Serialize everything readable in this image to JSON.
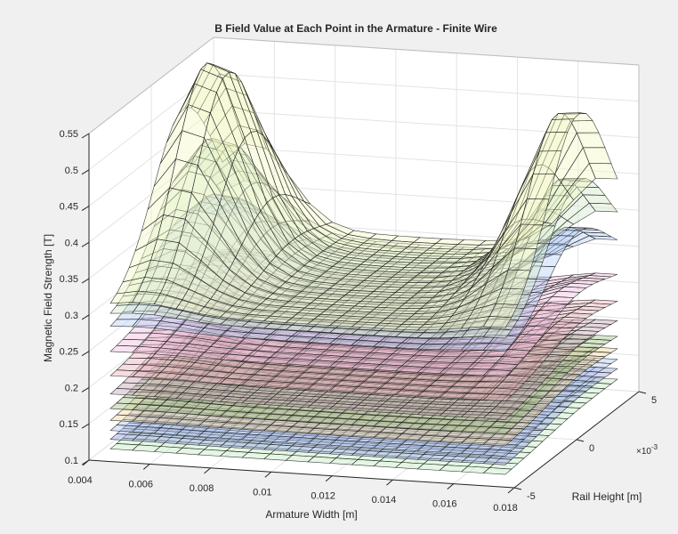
{
  "chart_data": {
    "type": "surface",
    "title": "B Field Value at Each Point in the Armature - Finite Wire",
    "xlabel": "Armature Width [m]",
    "ylabel": "Rail Height [m]",
    "zlabel": "Magnetic Field Strength [T]",
    "xlim": [
      0.004,
      0.018
    ],
    "ylim": [
      -0.005,
      0.005
    ],
    "zlim": [
      0.1,
      0.55
    ],
    "xticks": [
      "0.004",
      "0.006",
      "0.008",
      "0.01",
      "0.012",
      "0.014",
      "0.016",
      "0.018"
    ],
    "yticks": [
      "-5",
      "0",
      "5"
    ],
    "y_exponent": "×10",
    "y_exponent_power": "-3",
    "zticks": [
      "0.1",
      "0.15",
      "0.2",
      "0.25",
      "0.3",
      "0.35",
      "0.4",
      "0.45",
      "0.5",
      "0.55"
    ],
    "grid": true,
    "surface_domain": {
      "x": [
        0.0045,
        0.0175
      ],
      "y": [
        -0.0045,
        0.0045
      ]
    },
    "surfaces": [
      {
        "base": 0.115,
        "peak_extra": 0.006,
        "color": "#c4ecc4"
      },
      {
        "base": 0.128,
        "peak_extra": 0.01,
        "color": "#98a8e6"
      },
      {
        "base": 0.14,
        "peak_extra": 0.012,
        "color": "#b4c6f2"
      },
      {
        "base": 0.154,
        "peak_extra": 0.014,
        "color": "#f2d8a0"
      },
      {
        "base": 0.17,
        "peak_extra": 0.016,
        "color": "#a6c48c"
      },
      {
        "base": 0.19,
        "peak_extra": 0.02,
        "color": "#c8a8b8"
      },
      {
        "base": 0.215,
        "peak_extra": 0.025,
        "color": "#eab2ba"
      },
      {
        "base": 0.248,
        "peak_extra": 0.035,
        "color": "#f2c2e2"
      },
      {
        "base": 0.275,
        "peak_extra": 0.1,
        "color": "#b8d0f8"
      },
      {
        "base": 0.29,
        "peak_extra": 0.16,
        "color": "#d4eccc"
      },
      {
        "base": 0.3,
        "peak_extra": 0.25,
        "color": "#f4f8c8"
      }
    ]
  }
}
